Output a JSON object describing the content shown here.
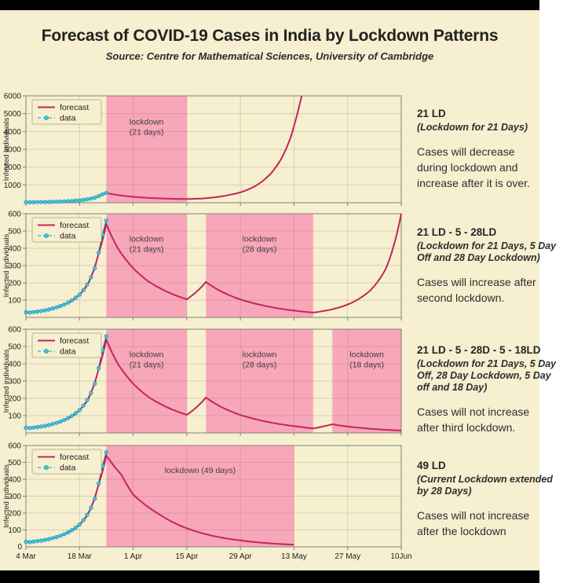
{
  "page": {
    "title": "Forecast of COVID-19 Cases in India by Lockdown Patterns",
    "subtitle": "Source: Centre for Mathematical Sciences, University of Cambridge"
  },
  "colors": {
    "background": "#f6efd0",
    "band_pink": "#f8a6b9",
    "forecast_line": "#c2255c",
    "data_marker": "#3cc6de",
    "data_marker_edge": "#1f8fae",
    "data_line": "#2d6fb0",
    "grid": "#82764a",
    "spine": "#82807a",
    "text": "#222222",
    "band_label": "#3f3f3f",
    "legend_border": "#bdb38c",
    "black_bar": "#000000"
  },
  "legend": {
    "forecast_label": "forecast",
    "data_label": "data"
  },
  "ylabel": "Infected individuals",
  "x_domain": [
    0,
    98
  ],
  "x_tick_days": [
    0,
    14,
    28,
    42,
    56,
    70,
    84,
    98
  ],
  "x_tick_labels": [
    "4 Mar",
    "18 Mar",
    "1 Apr",
    "15 Apr",
    "29 Apr",
    "13 May",
    "27 May",
    "10Jun"
  ],
  "zero_label": "0",
  "observed_data_points": [
    [
      0,
      30
    ],
    [
      1,
      28
    ],
    [
      2,
      31
    ],
    [
      3,
      34
    ],
    [
      4,
      37
    ],
    [
      5,
      41
    ],
    [
      6,
      46
    ],
    [
      7,
      52
    ],
    [
      8,
      58
    ],
    [
      9,
      66
    ],
    [
      10,
      75
    ],
    [
      11,
      86
    ],
    [
      12,
      99
    ],
    [
      13,
      114
    ],
    [
      14,
      132
    ],
    [
      15,
      158
    ],
    [
      16,
      190
    ],
    [
      17,
      232
    ],
    [
      18,
      285
    ],
    [
      19,
      375
    ],
    [
      20,
      478
    ],
    [
      21,
      560
    ]
  ],
  "chart_data": [
    {
      "type": "line",
      "id": "21 LD",
      "ylim": [
        0,
        6000
      ],
      "yticks": [
        1000,
        2000,
        3000,
        4000,
        5000,
        6000
      ],
      "bands": [
        {
          "start_day": 21,
          "end_day": 42,
          "label_lines": [
            "lockdown",
            "(21 days)"
          ]
        }
      ],
      "series": [
        {
          "name": "forecast",
          "anchors": [
            [
              0,
              30
            ],
            [
              4,
              38
            ],
            [
              8,
              58
            ],
            [
              12,
              95
            ],
            [
              16,
              185
            ],
            [
              19,
              370
            ],
            [
              21,
              545
            ],
            [
              24,
              430
            ],
            [
              28,
              330
            ],
            [
              33,
              260
            ],
            [
              38,
              222
            ],
            [
              42,
              205
            ],
            [
              46,
              235
            ],
            [
              50,
              320
            ],
            [
              56,
              580
            ],
            [
              60,
              950
            ],
            [
              64,
              1650
            ],
            [
              67,
              2600
            ],
            [
              69,
              3600
            ],
            [
              70.5,
              4700
            ],
            [
              72,
              6000
            ]
          ]
        },
        {
          "name": "data",
          "use_observed": true
        }
      ]
    },
    {
      "type": "line",
      "id": "21 LD - 5 - 28LD",
      "ylim": [
        0,
        600
      ],
      "yticks": [
        100,
        200,
        300,
        400,
        500,
        600
      ],
      "bands": [
        {
          "start_day": 21,
          "end_day": 42,
          "label_lines": [
            "lockdown",
            "(21 days)"
          ]
        },
        {
          "start_day": 47,
          "end_day": 75,
          "label_lines": [
            "lockdown",
            "(28 days)"
          ]
        }
      ],
      "series": [
        {
          "name": "forecast",
          "anchors": [
            [
              0,
              30
            ],
            [
              4,
              38
            ],
            [
              8,
              58
            ],
            [
              12,
              95
            ],
            [
              16,
              185
            ],
            [
              19,
              370
            ],
            [
              21,
              540
            ],
            [
              24,
              400
            ],
            [
              28,
              285
            ],
            [
              32,
              208
            ],
            [
              37,
              147
            ],
            [
              42,
              105
            ],
            [
              44.5,
              148
            ],
            [
              47,
              205
            ],
            [
              51,
              150
            ],
            [
              56,
              104
            ],
            [
              61,
              74
            ],
            [
              66,
              52
            ],
            [
              71,
              37
            ],
            [
              75,
              28
            ],
            [
              80,
              47
            ],
            [
              85,
              84
            ],
            [
              90,
              158
            ],
            [
              94,
              283
            ],
            [
              98,
              600
            ]
          ]
        },
        {
          "name": "data",
          "use_observed": true
        }
      ]
    },
    {
      "type": "line",
      "id": "21 LD - 5 - 28D - 5 - 18LD",
      "ylim": [
        0,
        600
      ],
      "yticks": [
        100,
        200,
        300,
        400,
        500,
        600
      ],
      "bands": [
        {
          "start_day": 21,
          "end_day": 42,
          "label_lines": [
            "lockdown",
            "(21 days)"
          ]
        },
        {
          "start_day": 47,
          "end_day": 75,
          "label_lines": [
            "lockdown",
            "(28 days)"
          ]
        },
        {
          "start_day": 80,
          "end_day": 98,
          "label_lines": [
            "lockdown",
            "(18 days)"
          ]
        }
      ],
      "series": [
        {
          "name": "forecast",
          "anchors": [
            [
              0,
              30
            ],
            [
              4,
              38
            ],
            [
              8,
              58
            ],
            [
              12,
              95
            ],
            [
              16,
              185
            ],
            [
              19,
              370
            ],
            [
              21,
              540
            ],
            [
              24,
              400
            ],
            [
              28,
              285
            ],
            [
              32,
              208
            ],
            [
              37,
              147
            ],
            [
              42,
              105
            ],
            [
              44.5,
              148
            ],
            [
              47,
              205
            ],
            [
              51,
              150
            ],
            [
              56,
              104
            ],
            [
              61,
              74
            ],
            [
              66,
              52
            ],
            [
              71,
              37
            ],
            [
              75,
              26
            ],
            [
              77.5,
              37
            ],
            [
              80,
              50
            ],
            [
              84,
              37
            ],
            [
              89,
              26
            ],
            [
              94,
              18
            ],
            [
              98,
              14
            ]
          ]
        },
        {
          "name": "data",
          "use_observed": true
        }
      ]
    },
    {
      "type": "line",
      "id": "49 LD",
      "ylim": [
        0,
        600
      ],
      "yticks": [
        100,
        200,
        300,
        400,
        500,
        600
      ],
      "bands": [
        {
          "start_day": 21,
          "end_day": 70,
          "label_lines": [
            "lockdown (49 days)"
          ]
        }
      ],
      "series": [
        {
          "name": "forecast",
          "anchors": [
            [
              0,
              30
            ],
            [
              4,
              38
            ],
            [
              8,
              58
            ],
            [
              12,
              95
            ],
            [
              16,
              185
            ],
            [
              19,
              370
            ],
            [
              21,
              540
            ],
            [
              25,
              425
            ],
            [
              28,
              310
            ],
            [
              35,
              190
            ],
            [
              42,
              110
            ],
            [
              49,
              64
            ],
            [
              56,
              38
            ],
            [
              63,
              22
            ],
            [
              70,
              13
            ]
          ]
        },
        {
          "name": "data",
          "use_observed": true
        }
      ]
    }
  ],
  "annotations": [
    {
      "heading": "21 LD",
      "subtitle_lines": [
        "(Lockdown for 21 Days)"
      ],
      "body_lines": [
        "Cases will decrease",
        "during lockdown and",
        "increase after it is over."
      ]
    },
    {
      "heading": "21 LD - 5 - 28LD",
      "subtitle_lines": [
        "(Lockdown for 21 Days, 5 Day",
        "Off and 28 Day Lockdown)"
      ],
      "body_lines": [
        "Cases will increase after",
        "second lockdown."
      ]
    },
    {
      "heading": "21 LD - 5 - 28D - 5 - 18LD",
      "subtitle_lines": [
        "(Lockdown for 21 Days, 5 Day",
        "Off, 28 Day Lockdown, 5 Day",
        "off and 18 Day)"
      ],
      "body_lines": [
        "Cases will not increase",
        "after third lockdown."
      ]
    },
    {
      "heading": "49 LD",
      "subtitle_lines": [
        "(Current Lockdown extended",
        "by 28 Days)"
      ],
      "body_lines": [
        "Cases will not increase",
        "after the lockdown"
      ]
    }
  ]
}
